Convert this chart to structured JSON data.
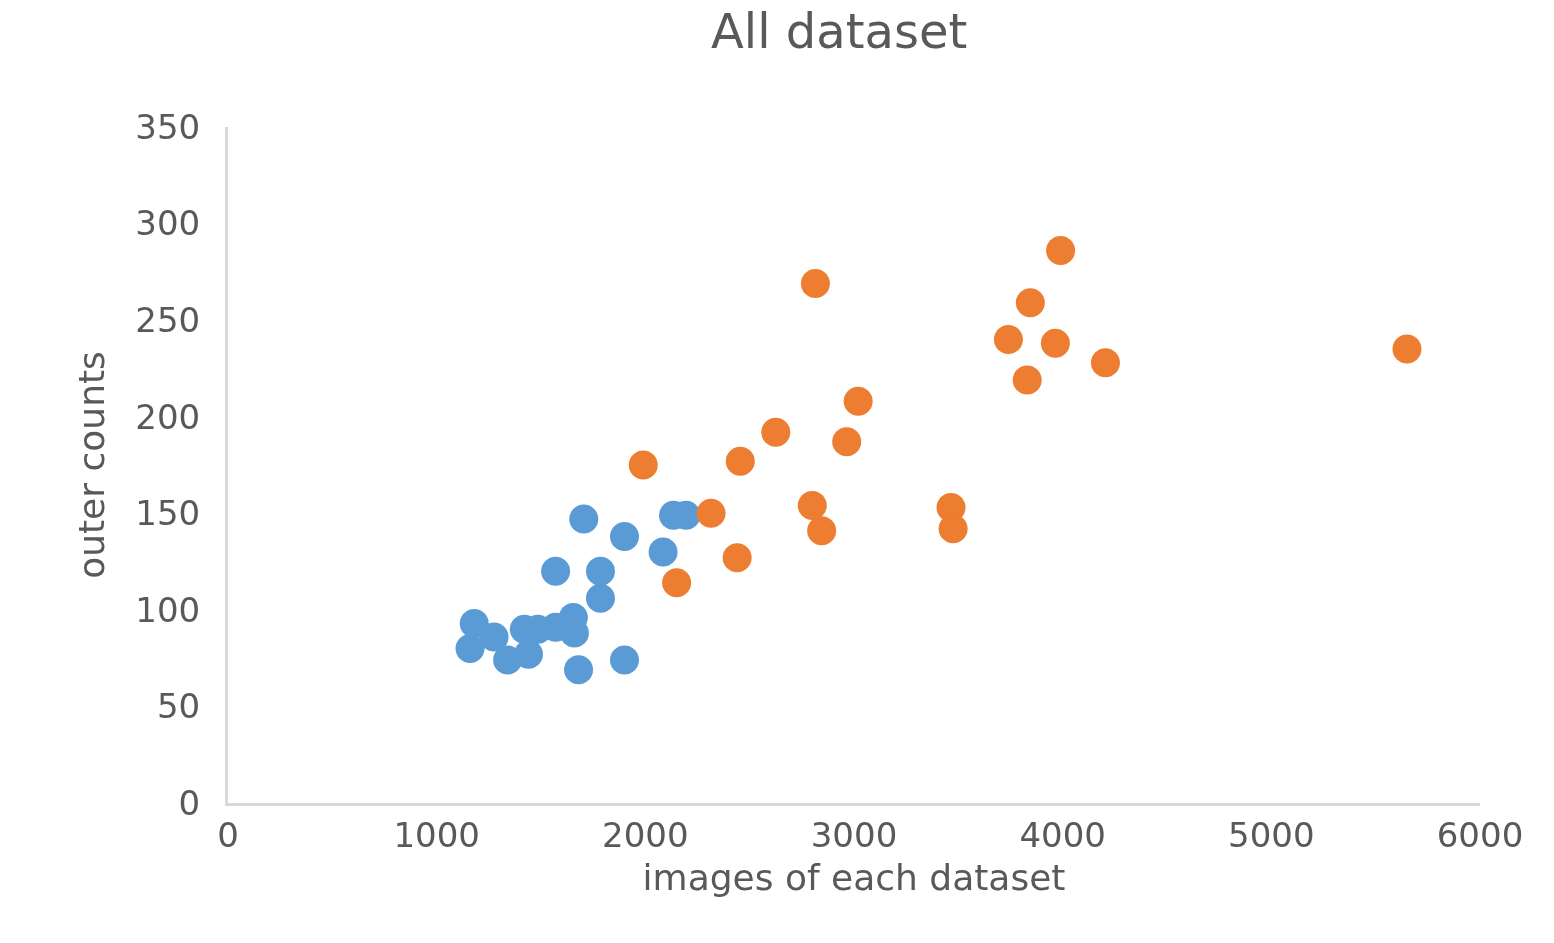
{
  "chart_data": {
    "type": "scatter",
    "title": "All dataset",
    "xlabel": "images of each dataset",
    "ylabel": "outer counts",
    "xlim": [
      0,
      6000
    ],
    "xticks": [
      0,
      1000,
      2000,
      3000,
      4000,
      5000,
      6000
    ],
    "ylim": [
      0,
      350
    ],
    "yticks": [
      0,
      50,
      100,
      150,
      200,
      250,
      300,
      350
    ],
    "grid": false,
    "marker": "circle",
    "series": [
      {
        "color": "#5b9bd5",
        "x": [
          1180,
          1160,
          1275,
          1340,
          1440,
          1420,
          1485,
          1570,
          1655,
          1660,
          1680,
          1570,
          1705,
          1785,
          1785,
          1900,
          1900,
          2085,
          2135,
          2195
        ],
        "values": [
          93,
          80,
          86,
          74,
          77,
          90,
          90,
          91,
          96,
          88,
          69,
          120,
          147,
          120,
          106,
          138,
          74,
          130,
          149,
          149
        ]
      },
      {
        "color": "#ed7d31",
        "x": [
          1990,
          2150,
          2315,
          2440,
          2455,
          2625,
          2800,
          2815,
          2845,
          2965,
          3020,
          3465,
          3475,
          3740,
          3830,
          3845,
          3965,
          3990,
          4205,
          5650
        ],
        "values": [
          175,
          114,
          150,
          127,
          177,
          192,
          154,
          269,
          141,
          187,
          208,
          153,
          142,
          240,
          219,
          259,
          238,
          286,
          228,
          235
        ]
      }
    ]
  }
}
